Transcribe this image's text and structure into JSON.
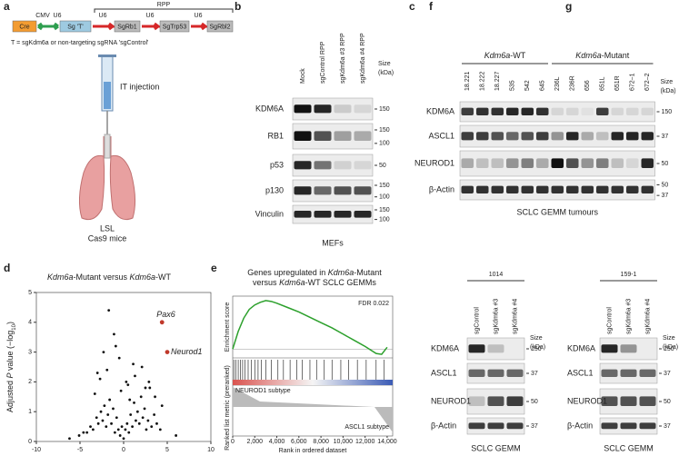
{
  "panel_a": {
    "label": "a",
    "construct": [
      "Cre",
      "CMV",
      "U6",
      "Sg 'T'",
      "U6",
      "SgRb1",
      "U6",
      "SgTrp53",
      "U6",
      "SgRbl2"
    ],
    "bracket": "RPP",
    "note": "T = sgKdm6a or non-targeting sgRNA 'sgControl'",
    "step": "IT injection",
    "mouse": [
      "LSL",
      "Cas9 mice"
    ]
  },
  "panel_b": {
    "label": "b",
    "lanes": [
      "Mock",
      "sgControl RPP",
      "sgKdm6a #3 RPP",
      "sgKdm6a #4 RPP"
    ],
    "size_header": [
      "Size",
      "(kDa)"
    ],
    "rows": [
      {
        "name": "KDM6A",
        "sizes": [
          150
        ]
      },
      {
        "name": "RB1",
        "sizes": [
          150,
          100
        ]
      },
      {
        "name": "p53",
        "sizes": [
          50
        ]
      },
      {
        "name": "p130",
        "sizes": [
          150,
          100
        ]
      },
      {
        "name": "Vinculin",
        "sizes": [
          150,
          100
        ]
      }
    ],
    "footer": "MEFs"
  },
  "panel_c": {
    "label": "c",
    "groups": [
      [
        "Kdm6a",
        "-WT"
      ],
      [
        "Kdm6a",
        "-Mutant"
      ]
    ],
    "lanes": [
      "18.221",
      "18.222",
      "18.227",
      "535",
      "542",
      "645",
      "236L",
      "236R",
      "656",
      "651L",
      "651R",
      "672–1",
      "672–2"
    ],
    "size_header": [
      "Size",
      "(kDa)"
    ],
    "rows": [
      {
        "name": "KDM6A",
        "sizes": [
          150
        ]
      },
      {
        "name": "ASCL1",
        "sizes": [
          37
        ]
      },
      {
        "name": "NEUROD1",
        "sizes": [
          50
        ]
      },
      {
        "name": "β-Actin",
        "sizes": [
          50,
          37
        ]
      }
    ],
    "footer": "SCLC GEMM tumours"
  },
  "chart_data": [
    {
      "type": "scatter",
      "label": "d",
      "title": [
        "Kdm6a",
        "-Mutant versus ",
        "Kdm6a",
        "-WT"
      ],
      "y_label": [
        "Adjusted ",
        "P",
        " value (−log",
        "10",
        ")"
      ],
      "x": [
        -4.2,
        -3.8,
        -3.5,
        -3.1,
        -2.9,
        -2.6,
        -2.4,
        -2.2,
        -2.0,
        -1.8,
        -1.6,
        -1.4,
        -1.2,
        -1.0,
        -0.8,
        -0.6,
        -0.4,
        -0.2,
        0,
        0.2,
        0.4,
        0.6,
        0.8,
        1.0,
        1.2,
        1.4,
        1.6,
        1.8,
        2.0,
        2.2,
        2.4,
        2.6,
        2.8,
        3.0,
        3.2,
        3.5,
        3.8,
        4.2,
        -5.1,
        -4.6,
        -3.3,
        -2.7,
        -1.9,
        -1.1,
        -0.5,
        0.5,
        1.3,
        2.1,
        2.9,
        3.6,
        4.4,
        -6.2,
        6.0,
        -1.7,
        -0.9,
        0.3,
        1.1,
        -2.3,
        2.5,
        -3.0,
        -0.3,
        0.7
      ],
      "values": [
        0.3,
        0.5,
        0.4,
        0.8,
        0.6,
        1.0,
        0.7,
        1.2,
        0.5,
        0.9,
        1.4,
        0.6,
        1.1,
        0.3,
        0.8,
        0.4,
        0.2,
        0.5,
        0.1,
        0.4,
        0.6,
        0.3,
        0.9,
        0.5,
        1.3,
        0.7,
        1.0,
        0.6,
        1.5,
        0.8,
        1.1,
        0.4,
        0.7,
        1.8,
        0.5,
        0.9,
        0.6,
        0.4,
        0.2,
        0.3,
        1.6,
        2.1,
        2.4,
        3.6,
        2.8,
        1.9,
        2.2,
        2.5,
        2.0,
        1.5,
        1.2,
        0.1,
        0.2,
        4.4,
        3.2,
        2.0,
        2.6,
        3.0,
        1.8,
        2.3,
        1.7,
        1.4
      ],
      "color": "#111111",
      "annotations": [
        {
          "text": "Pax6",
          "x": 4.4,
          "y": 4.0
        },
        {
          "text": "Neurod1",
          "x": 5.0,
          "y": 3.0
        }
      ],
      "annotation_color": "#c0392b",
      "xlim": [
        -10,
        10
      ],
      "ylim": [
        0,
        5
      ],
      "xticks": [
        -10,
        -5,
        0,
        5,
        10
      ],
      "yticks": [
        0,
        1,
        2,
        3,
        4,
        5
      ]
    },
    {
      "type": "line",
      "label": "e",
      "title": [
        [
          "Genes upregulated in ",
          "Kdm6a",
          "-Mutant"
        ],
        [
          "versus ",
          "Kdm6a",
          "-WT SCLC GEMMs"
        ]
      ],
      "fdr": "FDR 0.022",
      "y_label": "Enrichment score",
      "zone_labels": [
        "NEUROD1 subtype",
        "ASCL1 subtype"
      ],
      "metric_label": "Ranked list metric (preranked)",
      "x_label": "Rank in ordered dataset",
      "x": [
        0,
        500,
        1000,
        1500,
        2000,
        2500,
        3000,
        3500,
        4000,
        5000,
        6000,
        7000,
        8000,
        9000,
        10000,
        11000,
        12000,
        13000,
        13500,
        14000
      ],
      "values": [
        0,
        0.2,
        0.35,
        0.45,
        0.5,
        0.53,
        0.55,
        0.54,
        0.52,
        0.47,
        0.42,
        0.36,
        0.3,
        0.24,
        0.17,
        0.1,
        0.03,
        -0.05,
        -0.06,
        0.02
      ],
      "hits": [
        100,
        300,
        500,
        700,
        900,
        1100,
        1400,
        1700,
        2000,
        2300,
        2600,
        3000,
        3500,
        4100,
        4600,
        5200,
        5800,
        6300,
        7000,
        7600,
        8300,
        9000,
        9800,
        10500,
        11300,
        12100,
        13000,
        13700
      ],
      "color": "#2ca02c",
      "xlim": [
        0,
        14500
      ],
      "ylim": [
        -0.1,
        0.6
      ],
      "xticks": [
        0,
        {
          "value": 2000,
          "label": "2,000"
        },
        {
          "value": 4000,
          "label": "4,000"
        },
        {
          "value": 6000,
          "label": "6,000"
        },
        {
          "value": 8000,
          "label": "8,000"
        },
        {
          "value": 10000,
          "label": "10,000"
        },
        {
          "value": 12000,
          "label": "12,000"
        },
        {
          "value": 14000,
          "label": "14,000"
        }
      ]
    }
  ],
  "panel_f": {
    "label": "f",
    "sample": "1014",
    "lanes": [
      "sgControl",
      "sgKdm6a #3",
      "sgKdm6a #4"
    ],
    "size_header": [
      "Size",
      "(kDa)"
    ],
    "rows": [
      {
        "name": "KDM6A",
        "sizes": [
          150
        ]
      },
      {
        "name": "ASCL1",
        "sizes": [
          37
        ]
      },
      {
        "name": "NEUROD1",
        "sizes": [
          50
        ]
      },
      {
        "name": "β-Actin",
        "sizes": [
          37
        ]
      }
    ],
    "footer": "SCLC GEMM"
  },
  "panel_g": {
    "label": "g",
    "sample": "159-1",
    "lanes": [
      "sgControl",
      "sgKdm6a #3",
      "sgKdm6a #4"
    ],
    "size_header": [
      "Size",
      "(kDa)"
    ],
    "rows": [
      {
        "name": "KDM6A",
        "sizes": [
          150
        ]
      },
      {
        "name": "ASCL1",
        "sizes": [
          37
        ]
      },
      {
        "name": "NEUROD1",
        "sizes": [
          50
        ]
      },
      {
        "name": "β-Actin",
        "sizes": [
          37
        ]
      }
    ],
    "footer": "SCLC GEMM"
  }
}
